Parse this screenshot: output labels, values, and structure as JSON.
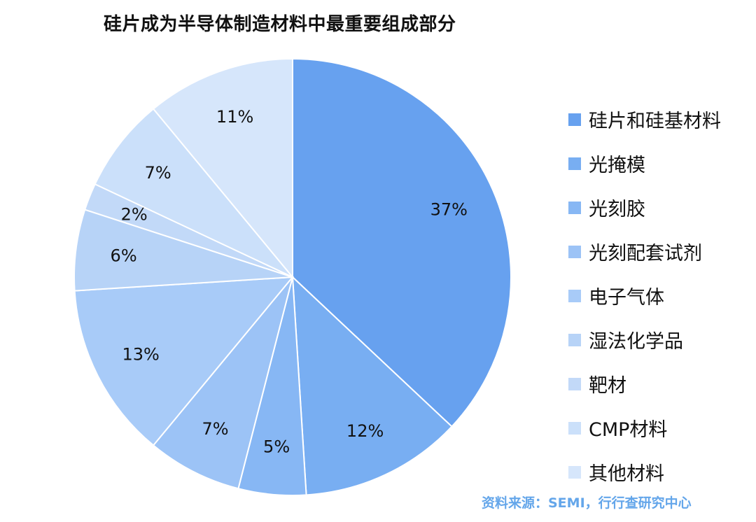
{
  "chart_data": {
    "type": "pie",
    "title": "硅片成为半导体制造材料中最重要组成部分",
    "legend_position": "right",
    "slices": [
      {
        "label": "硅片和硅基材料",
        "value": 37,
        "display": "37%",
        "color": "#67a1ef"
      },
      {
        "label": "光掩模",
        "value": 12,
        "display": "12%",
        "color": "#78aef2"
      },
      {
        "label": "光刻胶",
        "value": 5,
        "display": "5%",
        "color": "#87b7f4"
      },
      {
        "label": "光刻配套试剂",
        "value": 7,
        "display": "7%",
        "color": "#9cc3f6"
      },
      {
        "label": "电子气体",
        "value": 13,
        "display": "13%",
        "color": "#a8cbf8"
      },
      {
        "label": "湿法化学品",
        "value": 6,
        "display": "6%",
        "color": "#b7d3f7"
      },
      {
        "label": "靶材",
        "value": 2,
        "display": "2%",
        "color": "#c2d9f8"
      },
      {
        "label": "CMP材料",
        "value": 7,
        "display": "7%",
        "color": "#cbe0fa"
      },
      {
        "label": "其他材料",
        "value": 11,
        "display": "11%",
        "color": "#d6e6fb"
      }
    ]
  },
  "source_text": "资料来源：SEMI，行行查研究中心"
}
